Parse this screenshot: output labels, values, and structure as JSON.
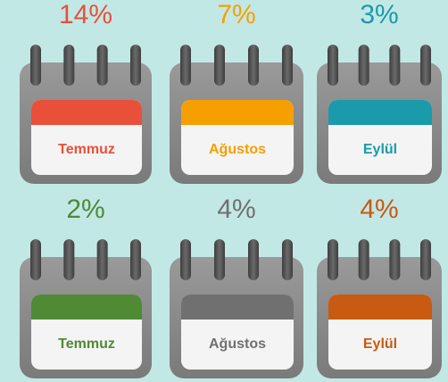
{
  "items": [
    {
      "percent": "14%",
      "label": "Temmuz",
      "color": "#e8503a"
    },
    {
      "percent": "7%",
      "label": "Ağustos",
      "color": "#f5a000"
    },
    {
      "percent": "3%",
      "label": "Eylül",
      "color": "#1a9aaa"
    },
    {
      "percent": "2%",
      "label": "Temmuz",
      "color": "#4f8a35"
    },
    {
      "percent": "4%",
      "label": "Ağustos",
      "color": "#707070"
    },
    {
      "percent": "4%",
      "label": "Eylül",
      "color": "#c85a12"
    }
  ]
}
